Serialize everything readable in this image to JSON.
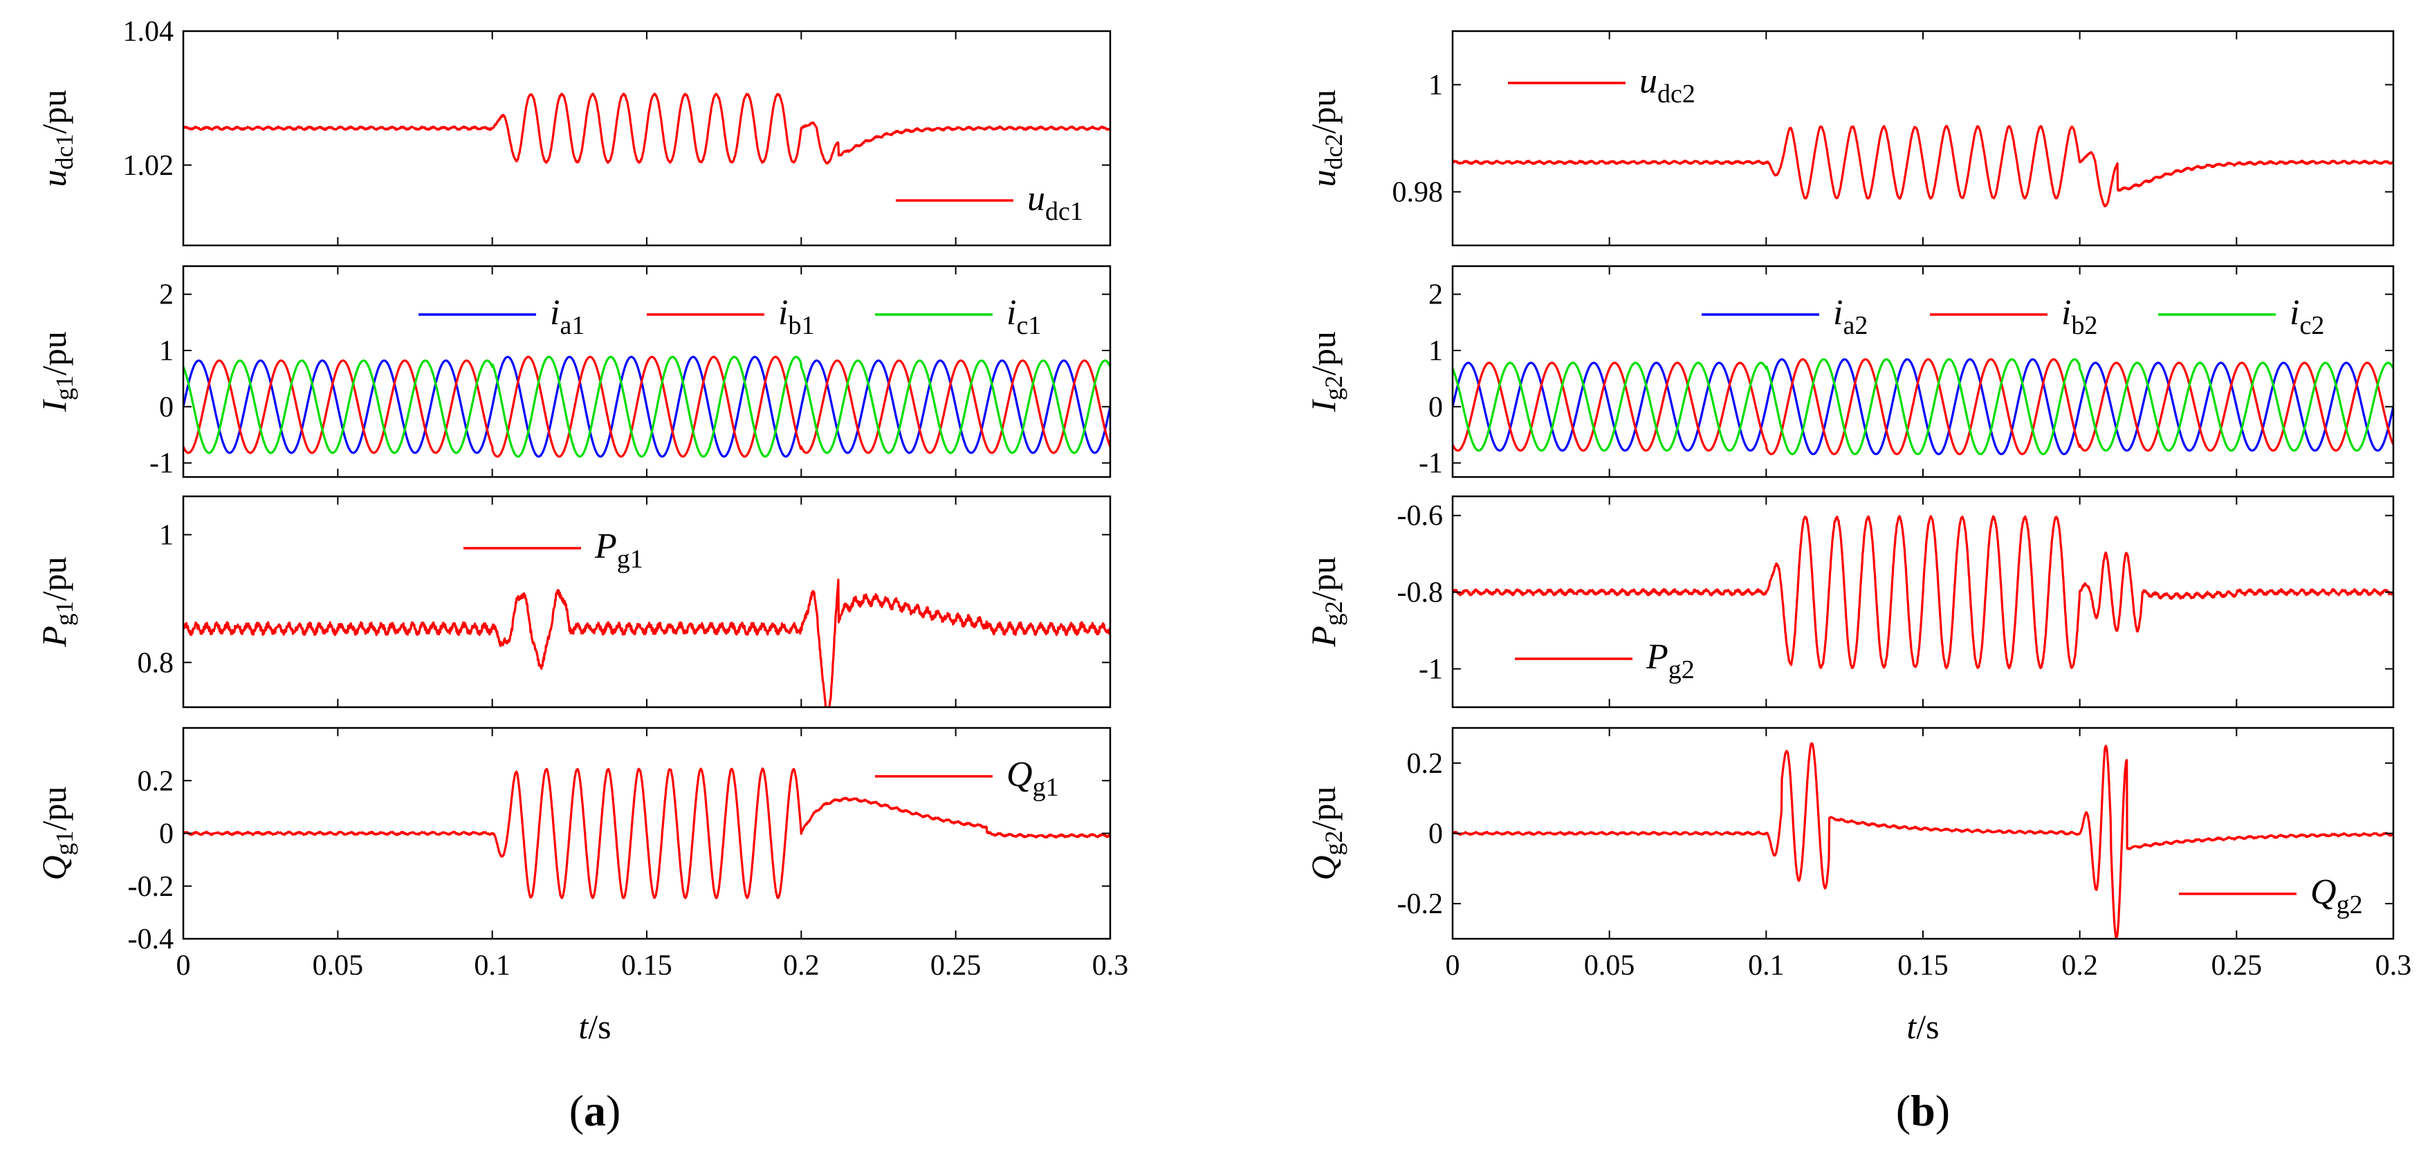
{
  "figure": {
    "panel_labels": [
      {
        "open": "(",
        "letter": "a",
        "close": ")"
      },
      {
        "open": "(",
        "letter": "b",
        "close": ")"
      }
    ],
    "xlabel": {
      "var": "t",
      "unit": "/s"
    }
  },
  "colors": {
    "red": "#ff0000",
    "blue": "#0000ff",
    "green": "#00dd00",
    "axis": "#000000"
  },
  "chart_data": [
    {
      "id": "a-udc1",
      "type": "line",
      "column": 0,
      "row": 0,
      "ylabel": {
        "var": "u",
        "sub": "dc1",
        "unit": "/pu"
      },
      "ylim": [
        1.008,
        1.04
      ],
      "yticks": [
        "1.02",
        "1.04"
      ],
      "ytick_values": [
        1.02,
        1.04
      ],
      "xlim": [
        0,
        0.3
      ],
      "legend": {
        "loc": "lower-right",
        "entries": [
          {
            "var": "u",
            "sub": "dc1",
            "color": "#ff0000"
          }
        ]
      },
      "series": [
        {
          "name": "u_dc1",
          "color": "#ff0000",
          "kind": "dc",
          "base": 1.0255,
          "ripple": 0.00025,
          "events": [
            {
              "t": 0.1,
              "dur": 0.1,
              "kind": "osc",
              "amp": 0.0052,
              "freq": 100
            },
            {
              "t": 0.2,
              "dur": 0.012,
              "kind": "osc",
              "amp": 0.002,
              "freq": 100
            },
            {
              "t": 0.205,
              "dur": 0.06,
              "kind": "bump",
              "amp": -0.004,
              "tau": 0.006
            }
          ]
        }
      ]
    },
    {
      "id": "a-ig1",
      "type": "line",
      "column": 0,
      "row": 1,
      "ylabel": {
        "var": "I",
        "sub": "g1",
        "unit": "/pu"
      },
      "ylim": [
        -1.25,
        2.5
      ],
      "yticks": [
        "2",
        "1",
        "0",
        "-1"
      ],
      "ytick_values": [
        2,
        1,
        0,
        -1
      ],
      "xlim": [
        0,
        0.3
      ],
      "legend": {
        "loc": "top-right",
        "entries": [
          {
            "var": "i",
            "sub": "a1",
            "color": "#0000ff"
          },
          {
            "var": "i",
            "sub": "b1",
            "color": "#ff0000"
          },
          {
            "var": "i",
            "sub": "c1",
            "color": "#00dd00"
          }
        ]
      },
      "series": [
        {
          "name": "i_a1",
          "color": "#0000ff",
          "kind": "ac",
          "amp": 0.82,
          "phase": 0,
          "freq": 50
        },
        {
          "name": "i_b1",
          "color": "#ff0000",
          "kind": "ac",
          "amp": 0.82,
          "phase": -120,
          "freq": 50
        },
        {
          "name": "i_c1",
          "color": "#00dd00",
          "kind": "ac",
          "amp": 0.82,
          "phase": 120,
          "freq": 50
        }
      ]
    },
    {
      "id": "a-pg1",
      "type": "line",
      "column": 0,
      "row": 2,
      "ylabel": {
        "var": "P",
        "sub": "g1",
        "unit": "/pu"
      },
      "ylim": [
        0.73,
        1.06
      ],
      "yticks": [
        "1",
        "0.8"
      ],
      "ytick_values": [
        1.0,
        0.8
      ],
      "xlim": [
        0,
        0.3
      ],
      "legend": {
        "loc": "top-center",
        "entries": [
          {
            "var": "P",
            "sub": "g1",
            "color": "#ff0000"
          }
        ]
      },
      "series": [
        {
          "name": "P_g1",
          "color": "#ff0000",
          "kind": "dc",
          "base": 0.853,
          "ripple": 0.01,
          "events": [
            {
              "t": 0.1,
              "dur": 0.025,
              "kind": "osc",
              "amp": 0.055,
              "freq": 80,
              "phase": 180
            },
            {
              "t": 0.2,
              "dur": 0.012,
              "kind": "osc",
              "amp": 0.13,
              "freq": 90
            },
            {
              "t": 0.21,
              "dur": 0.05,
              "kind": "bump",
              "amp": 0.045,
              "tau": 0.012
            }
          ]
        }
      ]
    },
    {
      "id": "a-qg1",
      "type": "line",
      "column": 0,
      "row": 3,
      "ylabel": {
        "var": "Q",
        "sub": "g1",
        "unit": "/pu"
      },
      "ylim": [
        -0.4,
        0.4
      ],
      "yticks": [
        "0.2",
        "0",
        "-0.2",
        "-0.4"
      ],
      "ytick_values": [
        0.2,
        0,
        -0.2,
        -0.4
      ],
      "xlim": [
        0,
        0.3
      ],
      "xticks": [
        "0",
        "0.05",
        "0.1",
        "0.15",
        "0.2",
        "0.25",
        "0.3"
      ],
      "xtick_values": [
        0,
        0.05,
        0.1,
        0.15,
        0.2,
        0.25,
        0.3
      ],
      "legend": {
        "loc": "top-right",
        "entries": [
          {
            "var": "Q",
            "sub": "g1",
            "color": "#ff0000"
          }
        ]
      },
      "series": [
        {
          "name": "Q_g1",
          "color": "#ff0000",
          "kind": "dc",
          "base": 0.0,
          "ripple": 0.006,
          "events": [
            {
              "t": 0.1,
              "dur": 0.1,
              "kind": "osc",
              "amp": 0.24,
              "freq": 100,
              "phase": 180
            },
            {
              "t": 0.2,
              "dur": 0.06,
              "kind": "bump",
              "amp": 0.13,
              "tau": 0.015
            },
            {
              "t": 0.26,
              "dur": 0.04,
              "kind": "bump",
              "amp": -0.01,
              "tau": 0.02
            }
          ]
        }
      ]
    },
    {
      "id": "b-udc2",
      "type": "line",
      "column": 1,
      "row": 0,
      "ylabel": {
        "var": "u",
        "sub": "dc2",
        "unit": "/pu"
      },
      "ylim": [
        0.97,
        1.01
      ],
      "yticks": [
        "1",
        "0.98"
      ],
      "ytick_values": [
        1.0,
        0.98
      ],
      "xlim": [
        0,
        0.3
      ],
      "legend": {
        "loc": "top-left",
        "entries": [
          {
            "var": "u",
            "sub": "dc2",
            "color": "#ff0000"
          }
        ]
      },
      "series": [
        {
          "name": "u_dc2",
          "color": "#ff0000",
          "kind": "dc",
          "base": 0.9855,
          "ripple": 0.0003,
          "events": [
            {
              "t": 0.1,
              "dur": 0.1,
              "kind": "osc",
              "amp": 0.0065,
              "freq": 100,
              "phase": 180
            },
            {
              "t": 0.2,
              "dur": 0.012,
              "kind": "osc",
              "amp": 0.005,
              "freq": 100
            },
            {
              "t": 0.205,
              "dur": 0.06,
              "kind": "bump",
              "amp": -0.005,
              "tau": 0.008
            }
          ]
        }
      ]
    },
    {
      "id": "b-ig2",
      "type": "line",
      "column": 1,
      "row": 1,
      "ylabel": {
        "var": "I",
        "sub": "g2",
        "unit": "/pu"
      },
      "ylim": [
        -1.25,
        2.5
      ],
      "yticks": [
        "2",
        "1",
        "0",
        "-1"
      ],
      "ytick_values": [
        2,
        1,
        0,
        -1
      ],
      "xlim": [
        0,
        0.3
      ],
      "legend": {
        "loc": "top-right",
        "entries": [
          {
            "var": "i",
            "sub": "a2",
            "color": "#0000ff"
          },
          {
            "var": "i",
            "sub": "b2",
            "color": "#ff0000"
          },
          {
            "var": "i",
            "sub": "c2",
            "color": "#00dd00"
          }
        ]
      },
      "series": [
        {
          "name": "i_a2",
          "color": "#0000ff",
          "kind": "ac",
          "amp": 0.78,
          "phase": 0,
          "freq": 50
        },
        {
          "name": "i_b2",
          "color": "#ff0000",
          "kind": "ac",
          "amp": 0.78,
          "phase": -120,
          "freq": 50
        },
        {
          "name": "i_c2",
          "color": "#00dd00",
          "kind": "ac",
          "amp": 0.78,
          "phase": 120,
          "freq": 50
        }
      ]
    },
    {
      "id": "b-pg2",
      "type": "line",
      "column": 1,
      "row": 2,
      "ylabel": {
        "var": "P",
        "sub": "g2",
        "unit": "/pu"
      },
      "ylim": [
        -1.1,
        -0.55
      ],
      "yticks": [
        "-0.6",
        "-0.8",
        "-1"
      ],
      "ytick_values": [
        -0.6,
        -0.8,
        -1.0
      ],
      "xlim": [
        0,
        0.3
      ],
      "legend": {
        "loc": "lower-left",
        "entries": [
          {
            "var": "P",
            "sub": "g2",
            "color": "#ff0000"
          }
        ]
      },
      "series": [
        {
          "name": "P_g2",
          "color": "#ff0000",
          "kind": "dc",
          "base": -0.8,
          "ripple": 0.008,
          "events": [
            {
              "t": 0.1,
              "dur": 0.1,
              "kind": "osc",
              "amp": 0.2,
              "freq": 100
            },
            {
              "t": 0.2,
              "dur": 0.02,
              "kind": "osc",
              "amp": 0.1,
              "freq": 150
            },
            {
              "t": 0.22,
              "dur": 0.03,
              "kind": "bump",
              "amp": -0.01,
              "tau": 0.01
            }
          ]
        }
      ]
    },
    {
      "id": "b-qg2",
      "type": "line",
      "column": 1,
      "row": 3,
      "ylabel": {
        "var": "Q",
        "sub": "g2",
        "unit": "/pu"
      },
      "ylim": [
        -0.3,
        0.3
      ],
      "yticks": [
        "0.2",
        "0",
        "-0.2"
      ],
      "ytick_values": [
        0.2,
        0,
        -0.2
      ],
      "xlim": [
        0,
        0.3
      ],
      "xticks": [
        "0",
        "0.05",
        "0.1",
        "0.15",
        "0.2",
        "0.25",
        "0.3"
      ],
      "xtick_values": [
        0,
        0.05,
        0.1,
        0.15,
        0.2,
        0.25,
        0.3
      ],
      "legend": {
        "loc": "lower-right",
        "entries": [
          {
            "var": "Q",
            "sub": "g2",
            "color": "#ff0000"
          }
        ]
      },
      "series": [
        {
          "name": "Q_g2",
          "color": "#ff0000",
          "kind": "dc",
          "base": 0.0,
          "ripple": 0.004,
          "events": [
            {
              "t": 0.1,
              "dur": 0.02,
              "kind": "osc",
              "amp": 0.2,
              "freq": 120,
              "phase": 180
            },
            {
              "t": 0.105,
              "dur": 0.09,
              "kind": "decay",
              "amp": 0.08,
              "tau": 0.025
            },
            {
              "t": 0.2,
              "dur": 0.015,
              "kind": "osc",
              "amp": 0.25,
              "freq": 150
            },
            {
              "t": 0.21,
              "dur": 0.09,
              "kind": "decay",
              "amp": -0.05,
              "tau": 0.03
            }
          ]
        }
      ]
    }
  ]
}
